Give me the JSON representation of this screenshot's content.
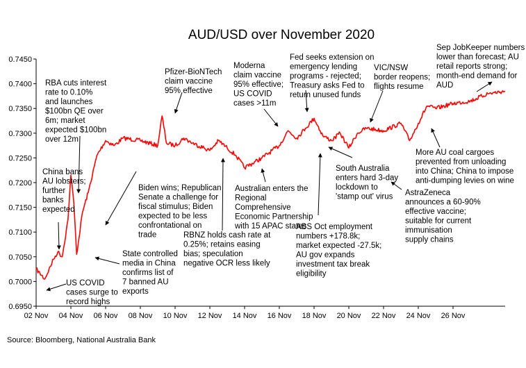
{
  "chart_data": {
    "type": "line",
    "title": "AUD/USD over November 2020",
    "xlabel": "",
    "ylabel": "",
    "x_tick_labels": [
      "02 Nov",
      "04 Nov",
      "06 Nov",
      "08 Nov",
      "10 Nov",
      "12 Nov",
      "14 Nov",
      "16 Nov",
      "18 Nov",
      "20 Nov",
      "22 Nov",
      "24 Nov",
      "26 Nov"
    ],
    "y_tick_labels": [
      "0.6950",
      "0.7000",
      "0.7050",
      "0.7100",
      "0.7150",
      "0.7200",
      "0.7250",
      "0.7300",
      "0.7350",
      "0.7400",
      "0.7450"
    ],
    "ylim": [
      0.695,
      0.745
    ],
    "xlim": [
      "2020-11-02",
      "2020-11-29"
    ],
    "line_color": "#ff0000",
    "grid": false,
    "series": [
      {
        "name": "",
        "x": [
          "2020-11-02",
          "2020-11-02T12:00",
          "2020-11-03",
          "2020-11-03T06:00",
          "2020-11-03T12:00",
          "2020-11-03T20:00",
          "2020-11-04",
          "2020-11-04T04:00",
          "2020-11-04T08:00",
          "2020-11-04T16:00",
          "2020-11-05",
          "2020-11-05T12:00",
          "2020-11-06",
          "2020-11-06T12:00",
          "2020-11-07",
          "2020-11-08",
          "2020-11-09",
          "2020-11-09T06:00",
          "2020-11-09T12:00",
          "2020-11-10",
          "2020-11-10T12:00",
          "2020-11-11",
          "2020-11-12",
          "2020-11-12T12:00",
          "2020-11-13",
          "2020-11-13T12:00",
          "2020-11-14",
          "2020-11-15",
          "2020-11-16",
          "2020-11-16T12:00",
          "2020-11-17",
          "2020-11-17T12:00",
          "2020-11-18",
          "2020-11-18T12:00",
          "2020-11-19",
          "2020-11-19T12:00",
          "2020-11-20",
          "2020-11-20T12:00",
          "2020-11-21",
          "2020-11-22",
          "2020-11-23",
          "2020-11-23T12:00",
          "2020-11-24",
          "2020-11-24T12:00",
          "2020-11-25",
          "2020-11-26",
          "2020-11-27",
          "2020-11-28",
          "2020-11-29"
        ],
        "values": [
          0.7025,
          0.7005,
          0.7045,
          0.706,
          0.705,
          0.7125,
          0.7215,
          0.716,
          0.7055,
          0.714,
          0.718,
          0.7255,
          0.7285,
          0.7275,
          0.729,
          0.7285,
          0.7275,
          0.7335,
          0.728,
          0.7275,
          0.729,
          0.728,
          0.7265,
          0.7285,
          0.727,
          0.7255,
          0.723,
          0.725,
          0.7275,
          0.7305,
          0.729,
          0.731,
          0.733,
          0.7295,
          0.7285,
          0.73,
          0.727,
          0.73,
          0.731,
          0.7305,
          0.732,
          0.7285,
          0.732,
          0.7355,
          0.735,
          0.736,
          0.7365,
          0.738,
          0.7385
        ]
      }
    ],
    "annotations": [
      {
        "id": "rba",
        "text": [
          "RBA cuts interest",
          "rate to 0.10%",
          "and launches",
          "$100bn QE over",
          "6m; market",
          "expected $100bn",
          "over 12m"
        ]
      },
      {
        "id": "china-lobsters",
        "text": [
          "China bans",
          "AU lobsters;",
          "further",
          "banks",
          "expected"
        ]
      },
      {
        "id": "us-covid",
        "text": [
          "US COVID",
          "cases surge to",
          "record highs"
        ]
      },
      {
        "id": "state-media",
        "text": [
          "State controlled",
          "media in China",
          "confirms list of",
          "7 banned AU",
          "exports"
        ]
      },
      {
        "id": "biden",
        "text": [
          "Biden wins; Republican",
          "Senate a challenge for",
          "fiscal stimulus; Biden",
          "expected to be less",
          "confrontational on",
          "trade"
        ]
      },
      {
        "id": "pfizer",
        "text": [
          "Pfizer-BioNTech",
          "claim vaccine",
          "95% effective"
        ]
      },
      {
        "id": "rbnz",
        "text": [
          "RBNZ holds cash rate at",
          "0.25%; retains easing",
          "bias; speculation",
          "negative OCR less likely"
        ]
      },
      {
        "id": "moderna",
        "text": [
          "Moderna",
          "claim vaccine",
          "95% effective;",
          "US COVID",
          "cases >11m"
        ]
      },
      {
        "id": "rcep",
        "text": [
          "Australian enters the",
          "Regional",
          "Comprehensive",
          "Economic Partnership",
          "with 15 APAC states"
        ]
      },
      {
        "id": "fed",
        "text": [
          "Fed seeks extension on",
          "emergency lending",
          "programs - rejected;",
          "Treasury asks Fed to",
          "return unused funds"
        ]
      },
      {
        "id": "abs",
        "text": [
          "ABS Oct employment",
          "numbers +178.8k;",
          "market expected -27.5k;",
          "AU gov expands",
          "investment tax break",
          "eligibility"
        ]
      },
      {
        "id": "sa-lockdown",
        "text": [
          "South Australia",
          "enters hard 3-day",
          "lockdown to",
          "'stamp out' virus"
        ]
      },
      {
        "id": "vic-nsw",
        "text": [
          "VIC/NSW",
          "border reopens;",
          "flights resume"
        ]
      },
      {
        "id": "astrazeneca",
        "text": [
          "AstraZeneca",
          "announces a 60-90%",
          "effective vaccine;",
          "suitable for current",
          "immunisation",
          "supply chains"
        ]
      },
      {
        "id": "coal",
        "text": [
          "More AU coal cargoes",
          "prevented from unloading",
          "into China; China to impose",
          "anti-dumping levies on wine"
        ]
      },
      {
        "id": "jobkeeper",
        "text": [
          "Sep JobKeeper numbers",
          "lower than forecast; AU",
          "retail reports strong;",
          "month-end demand for",
          "AUD"
        ]
      }
    ]
  },
  "footer": {
    "source": "Source: Bloomberg, National Australia Bank"
  }
}
